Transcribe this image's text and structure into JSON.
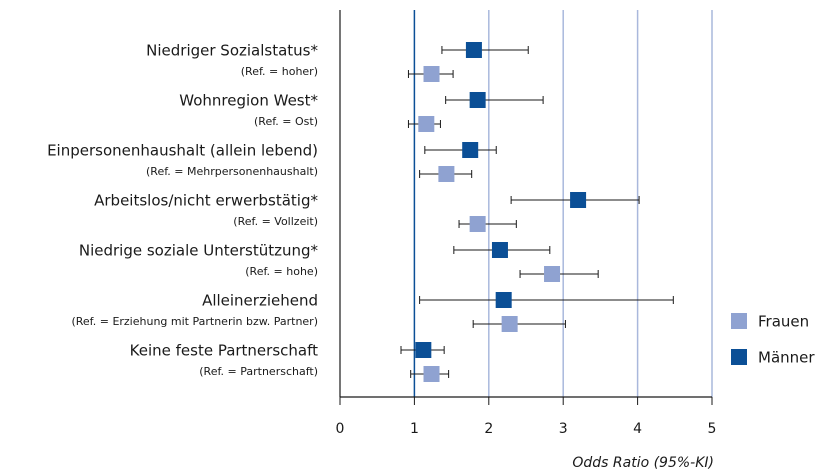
{
  "chart_data": {
    "type": "forest",
    "x_label": "Odds Ratio (95%-KI)",
    "categories": [
      "Niedriger Sozialstatus*",
      "Wohnregion West*",
      "Einpersonenhaushalt (allein lebend)",
      "Arbeitslos/nicht erwerbstätig*",
      "Niedrige soziale Unterstützung*",
      "Alleinerziehend",
      "Keine feste Partnerschaft"
    ],
    "subcategories": [
      "(Ref. = hoher)",
      "(Ref. = Ost)",
      "(Ref. = Mehrpersonenhaushalt)",
      "(Ref. = Vollzeit)",
      "(Ref. = hohe)",
      "(Ref. = Erziehung mit Partnerin bzw. Partner)",
      "(Ref. = Partnerschaft)"
    ],
    "series": [
      {
        "name": "Frauen",
        "color": "#8fa2d1",
        "values": [
          1.23,
          1.16,
          1.43,
          1.85,
          2.85,
          2.28,
          1.23
        ],
        "lower": [
          0.92,
          0.92,
          1.07,
          1.6,
          2.42,
          1.79,
          0.95
        ],
        "upper": [
          1.52,
          1.35,
          1.77,
          2.37,
          3.47,
          3.03,
          1.46
        ]
      },
      {
        "name": "Männer",
        "color": "#0b4f96",
        "values": [
          1.8,
          1.85,
          1.75,
          3.2,
          2.15,
          2.2,
          1.12
        ],
        "lower": [
          1.37,
          1.42,
          1.14,
          2.3,
          1.53,
          1.07,
          0.82
        ],
        "upper": [
          2.53,
          2.73,
          2.1,
          4.02,
          2.82,
          4.48,
          1.4
        ]
      }
    ],
    "xlim": [
      0,
      5
    ],
    "xticks": [
      0,
      1,
      2,
      3,
      4,
      5
    ],
    "reference": 1,
    "grid": true
  }
}
